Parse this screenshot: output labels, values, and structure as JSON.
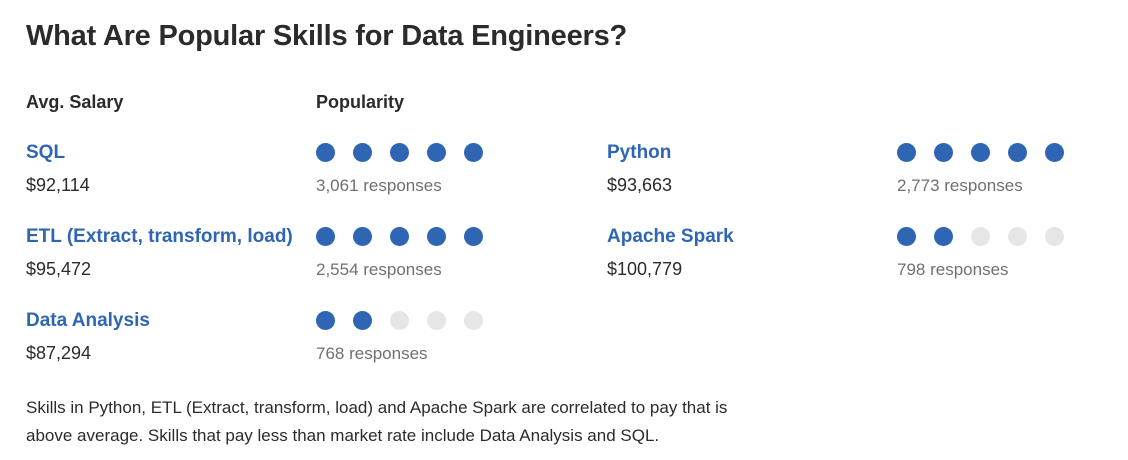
{
  "title": "What Are Popular Skills for Data Engineers?",
  "headers": {
    "salary": "Avg. Salary",
    "popularity": "Popularity"
  },
  "skills": [
    {
      "name": "SQL",
      "salary": "$92,114",
      "responses": "3,061 responses",
      "rating": 5,
      "max_rating": 5
    },
    {
      "name": "Python",
      "salary": "$93,663",
      "responses": "2,773 responses",
      "rating": 5,
      "max_rating": 5
    },
    {
      "name": "ETL (Extract, transform, load)",
      "salary": "$95,472",
      "responses": "2,554 responses",
      "rating": 5,
      "max_rating": 5
    },
    {
      "name": "Apache Spark",
      "salary": "$100,779",
      "responses": "798 responses",
      "rating": 2,
      "max_rating": 5
    },
    {
      "name": "Data Analysis",
      "salary": "$87,294",
      "responses": "768 responses",
      "rating": 2,
      "max_rating": 5
    }
  ],
  "summary": "Skills in Python, ETL (Extract, transform, load) and Apache Spark are correlated to pay that is above average. Skills that pay less than market rate include Data Analysis and SQL.",
  "colors": {
    "accent": "#2f66b3",
    "dot_off": "#e6e6e6",
    "muted_text": "#707070"
  }
}
